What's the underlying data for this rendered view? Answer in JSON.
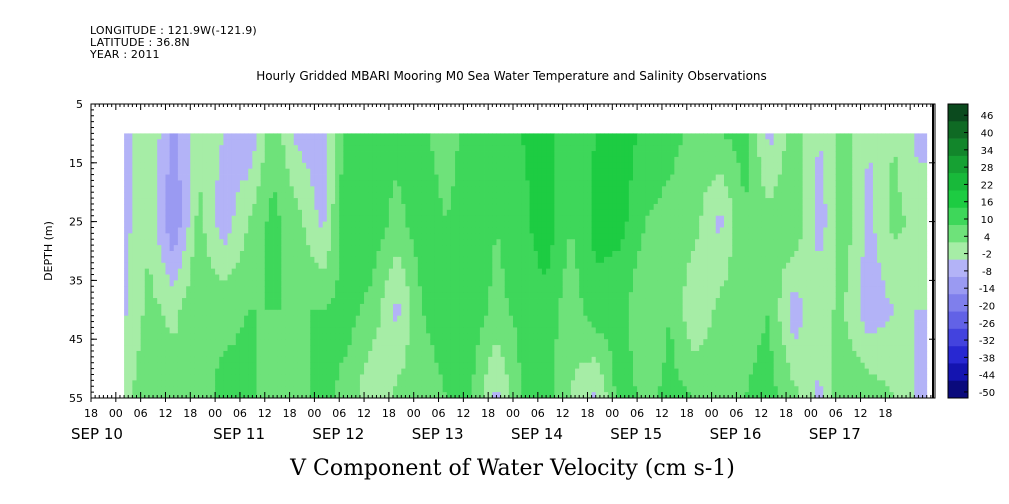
{
  "header": {
    "longitude": "LONGITUDE : 121.9W(-121.9)",
    "latitude": "LATITUDE : 36.8N",
    "year": "YEAR : 2011"
  },
  "chart_data": {
    "type": "heatmap",
    "title": "Hourly Gridded MBARI Mooring M0 Sea Water Temperature and Salinity Observations",
    "xlabel": "V Component of Water Velocity (cm s-1)",
    "ylabel": "DEPTH (m)",
    "ylim": [
      55,
      5
    ],
    "yticks": [
      5,
      15,
      25,
      35,
      45,
      55
    ],
    "data_depth_range": [
      10,
      55
    ],
    "x_hour_ticks": [
      "18",
      "00",
      "06",
      "12",
      "18",
      "00",
      "06",
      "12",
      "18",
      "00",
      "06",
      "12",
      "18",
      "00",
      "06",
      "12",
      "18",
      "00",
      "06",
      "12",
      "18",
      "00",
      "06",
      "12",
      "18",
      "00",
      "06",
      "12",
      "18",
      "00",
      "06",
      "12",
      "18"
    ],
    "day_labels": [
      "SEP 10",
      "SEP 11",
      "SEP 12",
      "SEP 13",
      "SEP 14",
      "SEP 15",
      "SEP 16",
      "SEP 17"
    ],
    "xrange_hours": [
      -6,
      198
    ],
    "data_start_hour": 2,
    "data_end_hour": 196,
    "colorbar": {
      "levels": [
        -50,
        -44,
        -38,
        -32,
        -26,
        -20,
        -14,
        -8,
        -2,
        4,
        10,
        16,
        22,
        28,
        34,
        40,
        46
      ],
      "labels": [
        "46",
        "40",
        "34",
        "28",
        "22",
        "16",
        "10",
        "4",
        "-2",
        "-8",
        "-14",
        "-20",
        "-26",
        "-32",
        "-38",
        "-44",
        "-50"
      ],
      "colors": [
        "#0b4a1e",
        "#0f6a24",
        "#12862b",
        "#16a133",
        "#18b93a",
        "#1dcc42",
        "#3ed75a",
        "#6ee27a",
        "#a6eda6",
        "#b3b3f7",
        "#9a9af2",
        "#7f7fec",
        "#6262e6",
        "#4343de",
        "#2828d2",
        "#1414b0",
        "#0a0a7c"
      ]
    },
    "v_field": {
      "rows_depth_m": [
        10,
        25,
        40,
        55
      ],
      "description_note": "",
      "columns": [
        {
          "hour": 2,
          "v": [
            -6,
            -4,
            -3,
            2
          ]
        },
        {
          "hour": 8,
          "v": [
            4,
            3,
            6,
            9
          ]
        },
        {
          "hour": 14,
          "v": [
            -10,
            -14,
            2,
            8
          ]
        },
        {
          "hour": 20,
          "v": [
            2,
            6,
            10,
            7
          ]
        },
        {
          "hour": 26,
          "v": [
            -2,
            -6,
            8,
            12
          ]
        },
        {
          "hour": 32,
          "v": [
            -8,
            4,
            10,
            12
          ]
        },
        {
          "hour": 38,
          "v": [
            8,
            12,
            10,
            6
          ]
        },
        {
          "hour": 44,
          "v": [
            -4,
            6,
            10,
            8
          ]
        },
        {
          "hour": 50,
          "v": [
            -6,
            -4,
            10,
            12
          ]
        },
        {
          "hour": 56,
          "v": [
            14,
            16,
            12,
            8
          ]
        },
        {
          "hour": 62,
          "v": [
            10,
            14,
            8,
            -2
          ]
        },
        {
          "hour": 68,
          "v": [
            12,
            8,
            -4,
            6
          ]
        },
        {
          "hour": 74,
          "v": [
            12,
            14,
            10,
            8
          ]
        },
        {
          "hour": 80,
          "v": [
            6,
            10,
            12,
            10
          ]
        },
        {
          "hour": 86,
          "v": [
            14,
            16,
            14,
            10
          ]
        },
        {
          "hour": 92,
          "v": [
            12,
            10,
            8,
            -4
          ]
        },
        {
          "hour": 98,
          "v": [
            16,
            14,
            12,
            10
          ]
        },
        {
          "hour": 104,
          "v": [
            18,
            20,
            14,
            12
          ]
        },
        {
          "hour": 110,
          "v": [
            12,
            10,
            6,
            4
          ]
        },
        {
          "hour": 116,
          "v": [
            16,
            18,
            14,
            -4
          ]
        },
        {
          "hour": 122,
          "v": [
            20,
            18,
            12,
            14
          ]
        },
        {
          "hour": 128,
          "v": [
            14,
            10,
            4,
            8
          ]
        },
        {
          "hour": 134,
          "v": [
            12,
            8,
            10,
            12
          ]
        },
        {
          "hour": 140,
          "v": [
            8,
            6,
            -2,
            10
          ]
        },
        {
          "hour": 146,
          "v": [
            10,
            -4,
            6,
            8
          ]
        },
        {
          "hour": 152,
          "v": [
            12,
            10,
            8,
            10
          ]
        },
        {
          "hour": 158,
          "v": [
            -4,
            6,
            10,
            12
          ]
        },
        {
          "hour": 164,
          "v": [
            8,
            10,
            -6,
            6
          ]
        },
        {
          "hour": 170,
          "v": [
            -2,
            -6,
            4,
            -4
          ]
        },
        {
          "hour": 176,
          "v": [
            6,
            8,
            4,
            10
          ]
        },
        {
          "hour": 182,
          "v": [
            -2,
            -4,
            -6,
            8
          ]
        },
        {
          "hour": 188,
          "v": [
            4,
            6,
            -2,
            4
          ]
        },
        {
          "hour": 194,
          "v": [
            -4,
            2,
            -2,
            -4
          ]
        }
      ]
    }
  }
}
